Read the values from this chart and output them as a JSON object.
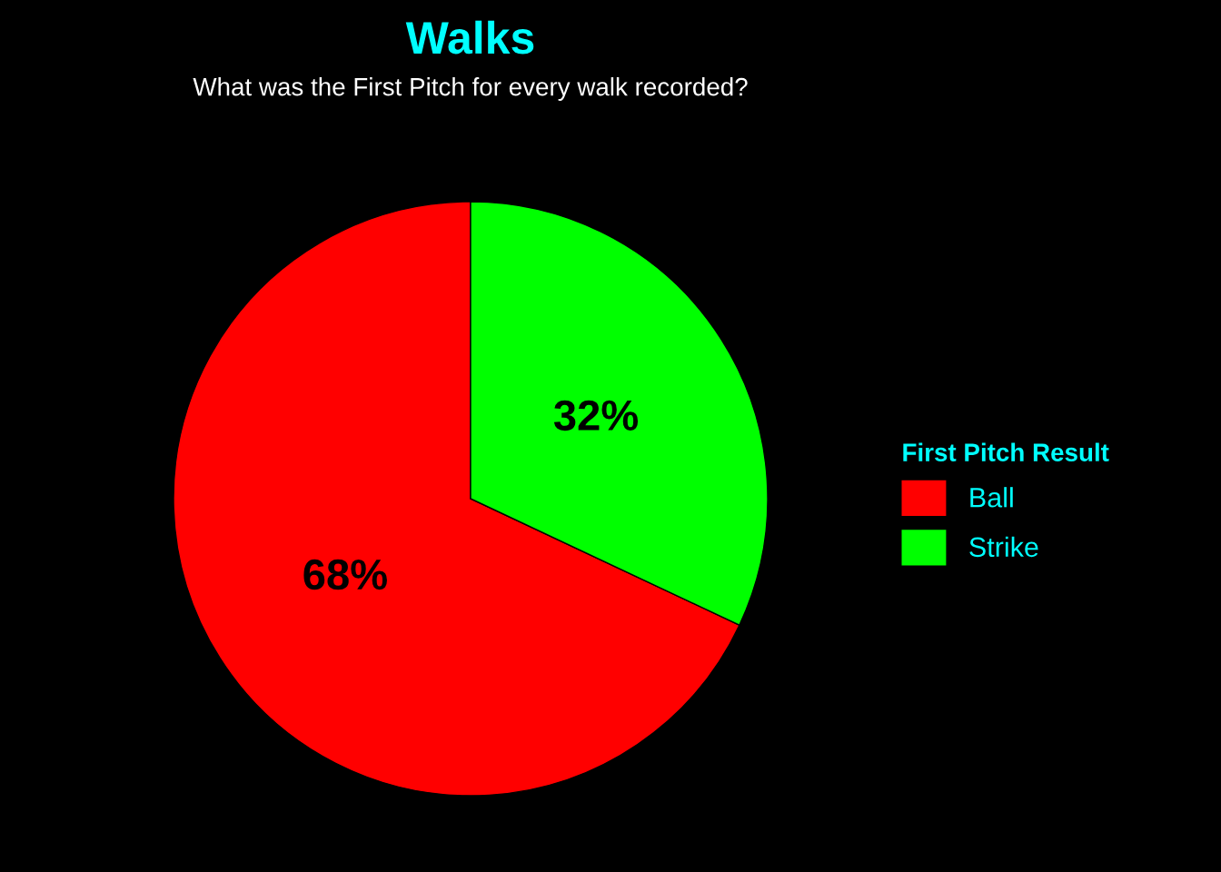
{
  "chart_data": {
    "type": "pie",
    "title": "Walks",
    "subtitle": "What was the First Pitch for every walk recorded?",
    "legend_title": "First Pitch Result",
    "categories": [
      "Ball",
      "Strike"
    ],
    "values": [
      68,
      32
    ],
    "colors": [
      "#ff0000",
      "#00ff00"
    ],
    "value_labels": [
      "68%",
      "32%"
    ],
    "legend": "right"
  }
}
